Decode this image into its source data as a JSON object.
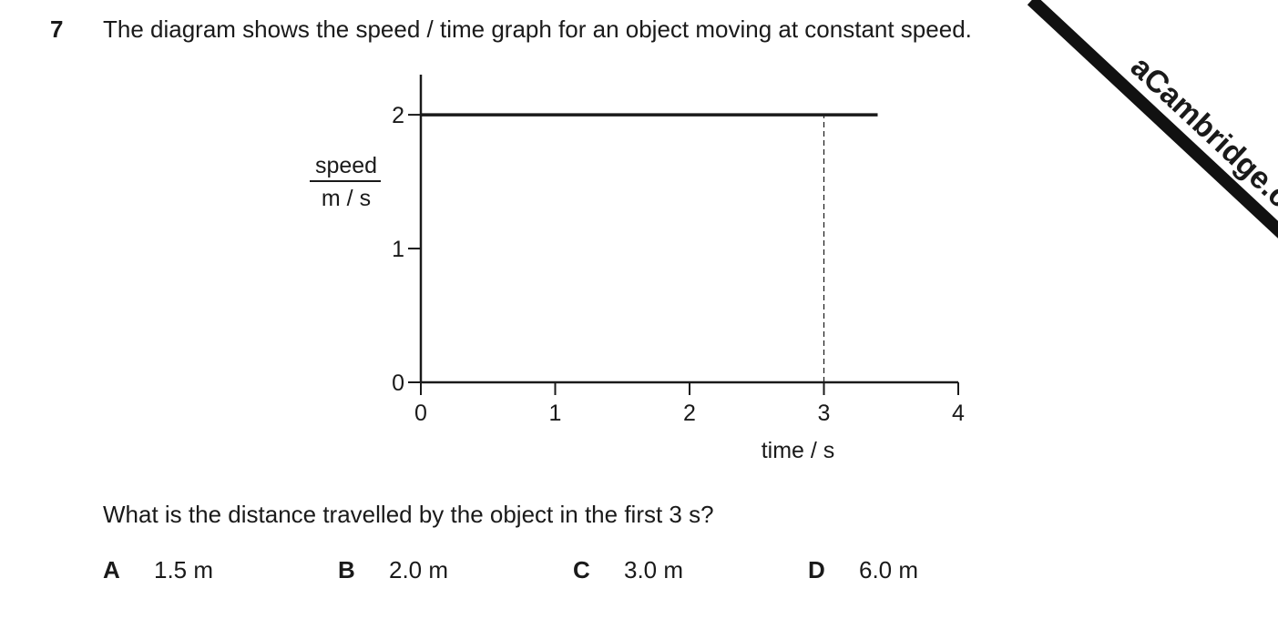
{
  "question": {
    "number": "7",
    "text": "The diagram shows the speed / time graph for an object moving at constant speed.",
    "prompt": "What is the distance travelled by the object in the first 3 s?",
    "options": [
      {
        "letter": "A",
        "text": "1.5 m"
      },
      {
        "letter": "B",
        "text": "2.0 m"
      },
      {
        "letter": "C",
        "text": "3.0 m"
      },
      {
        "letter": "D",
        "text": "6.0 m"
      }
    ]
  },
  "watermark": "aCambridge.c",
  "chart_data": {
    "type": "line",
    "ylabel": {
      "quantity": "speed",
      "unit": "m / s"
    },
    "xlabel": "time / s",
    "x": [
      0,
      3.4
    ],
    "series": [
      {
        "color": "#1a1a1a",
        "values": [
          2,
          2
        ]
      }
    ],
    "xlim": [
      0,
      4
    ],
    "xticks": [
      0,
      1,
      2,
      3,
      4
    ],
    "ylim": [
      0,
      2.3
    ],
    "yticks": [
      0,
      1,
      2
    ],
    "reference_line": {
      "x": 3,
      "style": "dashed"
    }
  }
}
